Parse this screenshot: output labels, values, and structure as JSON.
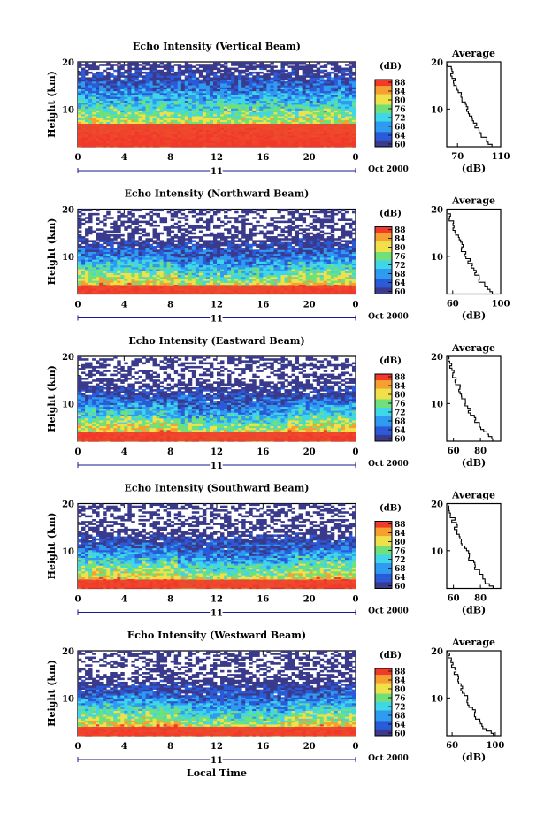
{
  "chart_data": [
    {
      "type": "heatmap",
      "title": "Echo Intensity (Vertical Beam)",
      "ylabel": "Height (km)",
      "xticks": [
        "0",
        "4",
        "8",
        "12",
        "16",
        "20",
        "0"
      ],
      "yticks": [
        "10",
        "20"
      ],
      "ylim": [
        2,
        20
      ],
      "xlim": [
        0,
        24
      ],
      "day_label": "11",
      "date_label": "Oct 2000",
      "colorbar": {
        "unit": "(dB)",
        "ticks": [
          "88",
          "84",
          "80",
          "76",
          "72",
          "68",
          "64",
          "60"
        ]
      },
      "profile": {
        "title": "Average",
        "xlabel": "(dB)",
        "xticks": [
          "70",
          "110"
        ],
        "xlim": [
          60,
          110
        ],
        "yticks": [
          "10",
          "20"
        ]
      }
    },
    {
      "type": "heatmap",
      "title": "Echo Intensity (Northward Beam)",
      "ylabel": "Height (km)",
      "xticks": [
        "0",
        "4",
        "8",
        "12",
        "16",
        "20",
        "0"
      ],
      "yticks": [
        "10",
        "20"
      ],
      "ylim": [
        2,
        20
      ],
      "xlim": [
        0,
        24
      ],
      "day_label": "11",
      "date_label": "Oct 2000",
      "colorbar": {
        "unit": "(dB)",
        "ticks": [
          "88",
          "84",
          "80",
          "76",
          "72",
          "68",
          "64",
          "60"
        ]
      },
      "profile": {
        "title": "Average",
        "xlabel": "(dB)",
        "xticks": [
          "60",
          "100"
        ],
        "xlim": [
          55,
          100
        ],
        "yticks": [
          "10",
          "20"
        ]
      }
    },
    {
      "type": "heatmap",
      "title": "Echo Intensity (Eastward Beam)",
      "ylabel": "Height (km)",
      "xticks": [
        "0",
        "4",
        "8",
        "12",
        "16",
        "20",
        "0"
      ],
      "yticks": [
        "10",
        "20"
      ],
      "ylim": [
        2,
        20
      ],
      "xlim": [
        0,
        24
      ],
      "day_label": "11",
      "date_label": "Oct 2000",
      "colorbar": {
        "unit": "(dB)",
        "ticks": [
          "88",
          "84",
          "80",
          "76",
          "72",
          "68",
          "64",
          "60"
        ]
      },
      "profile": {
        "title": "Average",
        "xlabel": "(dB)",
        "xticks": [
          "60",
          "80"
        ],
        "xlim": [
          55,
          95
        ],
        "yticks": [
          "10",
          "20"
        ]
      }
    },
    {
      "type": "heatmap",
      "title": "Echo Intensity (Southward Beam)",
      "ylabel": "Height (km)",
      "xticks": [
        "0",
        "4",
        "8",
        "12",
        "16",
        "20",
        "0"
      ],
      "yticks": [
        "10",
        "20"
      ],
      "ylim": [
        2,
        20
      ],
      "xlim": [
        0,
        24
      ],
      "day_label": "11",
      "date_label": "Oct 2000",
      "colorbar": {
        "unit": "(dB)",
        "ticks": [
          "88",
          "84",
          "80",
          "76",
          "72",
          "68",
          "64",
          "60"
        ]
      },
      "profile": {
        "title": "Average",
        "xlabel": "(dB)",
        "xticks": [
          "60",
          "80"
        ],
        "xlim": [
          55,
          95
        ],
        "yticks": [
          "10",
          "20"
        ]
      }
    },
    {
      "type": "heatmap",
      "title": "Echo Intensity (Westward Beam)",
      "ylabel": "Height (km)",
      "xticks": [
        "0",
        "4",
        "8",
        "12",
        "16",
        "20",
        "0"
      ],
      "yticks": [
        "10",
        "20"
      ],
      "ylim": [
        2,
        20
      ],
      "xlim": [
        0,
        24
      ],
      "day_label": "11",
      "date_label": "Oct 2000",
      "xlabel": "Local Time",
      "colorbar": {
        "unit": "(dB)",
        "ticks": [
          "88",
          "84",
          "80",
          "76",
          "72",
          "68",
          "64",
          "60"
        ]
      },
      "profile": {
        "title": "Average",
        "xlabel": "(dB)",
        "xticks": [
          "60",
          "100"
        ],
        "xlim": [
          55,
          105
        ],
        "yticks": [
          "10",
          "20"
        ]
      }
    }
  ],
  "colors": {
    "scale": [
      "#3a3a8c",
      "#2a5ad8",
      "#2f9bf0",
      "#3fd6e8",
      "#6fe07a",
      "#f0e04a",
      "#f5a030",
      "#f03a2a"
    ]
  }
}
